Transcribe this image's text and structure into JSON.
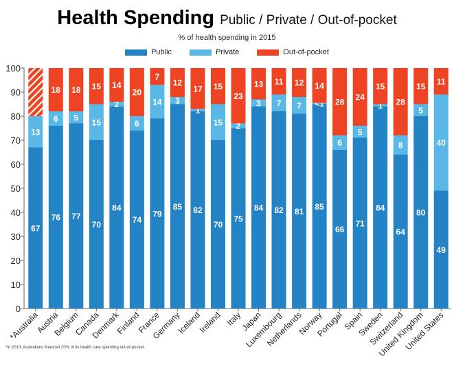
{
  "chart_data": {
    "type": "bar",
    "stacked": true,
    "title": "Health Spending",
    "title_suffix": "Public / Private / Out-of-pocket",
    "subtitle": "% of health spending in 2015",
    "xlabel": "",
    "ylabel": "",
    "ylim": [
      0,
      100
    ],
    "yticks": [
      0,
      10,
      20,
      30,
      40,
      50,
      60,
      70,
      80,
      90,
      100
    ],
    "grid": false,
    "legend_position": "top",
    "categories": [
      "*Australia",
      "Austria",
      "Belgium",
      "Canada",
      "Denmark",
      "Finland",
      "France",
      "Germany",
      "Iceland",
      "Ireland",
      "Italy",
      "Japan",
      "Luxembourg",
      "Netherlands",
      "Norway",
      "Portugal",
      "Spain",
      "Sweden",
      "Switzerland",
      "United Kingdom",
      "United States"
    ],
    "series": [
      {
        "name": "Public",
        "color": "#2483c5",
        "values": [
          67,
          76,
          77,
          70,
          84,
          74,
          79,
          85,
          82,
          70,
          75,
          84,
          82,
          81,
          85,
          66,
          71,
          84,
          64,
          80,
          49
        ],
        "labels": [
          "67",
          "76",
          "77",
          "70",
          "84",
          "74",
          "79",
          "85",
          "82",
          "70",
          "75",
          "84",
          "82",
          "81",
          "85",
          "66",
          "71",
          "84",
          "64",
          "80",
          "49"
        ]
      },
      {
        "name": "Private",
        "color": "#5ab8e6",
        "values": [
          13,
          6,
          5,
          15,
          2,
          6,
          14,
          3,
          1,
          15,
          2,
          3,
          7,
          7,
          0.5,
          6,
          5,
          1,
          8,
          5,
          40
        ],
        "labels": [
          "13",
          "6",
          "5",
          "15",
          "2",
          "6",
          "14",
          "3",
          "1",
          "15",
          "2",
          "3",
          "7",
          "7",
          "<1",
          "6",
          "5",
          "1",
          "8",
          "5",
          "40"
        ]
      },
      {
        "name": "Out-of-pocket",
        "color": "#ee4423",
        "values": [
          20,
          18,
          18,
          15,
          14,
          20,
          7,
          12,
          17,
          15,
          23,
          13,
          11,
          12,
          14,
          28,
          24,
          15,
          28,
          15,
          11
        ],
        "labels": [
          "",
          "18",
          "18",
          "15",
          "14",
          "20",
          "7",
          "12",
          "17",
          "15",
          "23",
          "13",
          "11",
          "12",
          "14",
          "28",
          "24",
          "15",
          "28",
          "15",
          "11"
        ]
      }
    ],
    "hatched": {
      "category": "*Australia",
      "series": "Out-of-pocket"
    },
    "footnote": "*In 2013, Australians financed 20% of its health care spending out-of-pocket."
  }
}
